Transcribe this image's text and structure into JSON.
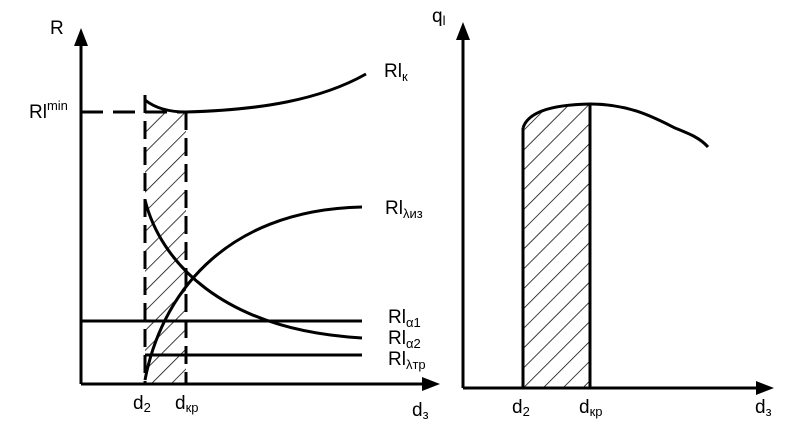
{
  "left_panel": {
    "y_axis_label": "R",
    "x_axis_label": {
      "base": "d",
      "sub": "з"
    },
    "x_ticks": [
      {
        "base": "d",
        "sub": "2"
      },
      {
        "base": "d",
        "sub": "кр"
      }
    ],
    "min_label": {
      "base": "Rl",
      "sup": "min"
    },
    "curves": [
      {
        "base": "Rl",
        "sub": "к"
      },
      {
        "base": "Rl",
        "sub": "λиз"
      },
      {
        "base": "Rl",
        "sub": "α1"
      },
      {
        "base": "Rl",
        "sub": "α2"
      },
      {
        "base": "Rl",
        "sub": "λтр"
      }
    ]
  },
  "right_panel": {
    "y_axis_label": {
      "base": "q",
      "sub": "l"
    },
    "x_axis_label": {
      "base": "d",
      "sub": "з"
    },
    "x_ticks": [
      {
        "base": "d",
        "sub": "2"
      },
      {
        "base": "d",
        "sub": "кр"
      }
    ]
  }
}
